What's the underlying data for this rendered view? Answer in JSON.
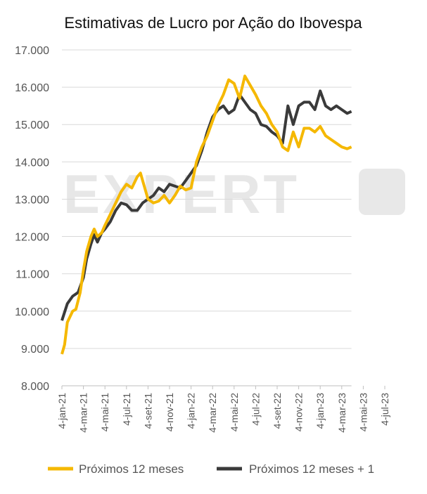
{
  "chart_data": {
    "type": "line",
    "title": "Estimativas de Lucro por Ação do Ibovespa",
    "xlabel": "",
    "ylabel": "",
    "ylim": [
      8000,
      17000
    ],
    "yticks": [
      "8.000",
      "9.000",
      "10.000",
      "11.000",
      "12.000",
      "13.000",
      "14.000",
      "15.000",
      "16.000",
      "17.000"
    ],
    "ytick_values": [
      8000,
      9000,
      10000,
      11000,
      12000,
      13000,
      14000,
      15000,
      16000,
      17000
    ],
    "xticks": [
      "4-jan-21",
      "4-mar-21",
      "4-mai-21",
      "4-jul-21",
      "4-set-21",
      "4-nov-21",
      "4-jan-22",
      "4-mar-22",
      "4-mai-22",
      "4-jul-22",
      "4-set-22",
      "4-nov-22",
      "4-jan-23",
      "4-mar-23",
      "4-mai-23",
      "4-jul-23"
    ],
    "x_unit": "months since 4-jan-21",
    "xlim": [
      0,
      26.9
    ],
    "grid": "horizontal",
    "legend_position": "bottom",
    "watermark": "EXPERT XP",
    "series": [
      {
        "name": "Próximos 12 meses",
        "color": "#F5B800",
        "x": [
          0,
          0.25,
          0.5,
          1,
          1.3,
          1.7,
          2,
          2.3,
          2.7,
          3,
          3.3,
          3.7,
          4,
          4.5,
          5,
          5.5,
          6,
          6.5,
          7,
          7.3,
          7.7,
          8,
          8.5,
          9,
          9.5,
          10,
          10.5,
          11,
          11.5,
          12,
          12.5,
          13,
          13.5,
          14,
          14.5,
          15,
          15.5,
          16,
          16.5,
          17,
          17.5,
          18,
          18.5,
          19,
          19.5,
          20,
          20.5,
          21,
          21.5,
          22,
          22.5,
          23,
          23.5,
          24,
          24.5,
          25,
          25.5,
          26,
          26.5,
          26.9
        ],
        "values": [
          8850,
          9100,
          9700,
          10000,
          10050,
          10500,
          11100,
          11600,
          12000,
          12200,
          12000,
          12100,
          12300,
          12600,
          12900,
          13200,
          13400,
          13300,
          13600,
          13700,
          13300,
          13000,
          12900,
          12950,
          13100,
          12900,
          13100,
          13350,
          13250,
          13300,
          14000,
          14400,
          14700,
          15100,
          15500,
          15800,
          16200,
          16100,
          15700,
          16300,
          16050,
          15800,
          15500,
          15300,
          15000,
          14800,
          14400,
          14300,
          14800,
          14400,
          14900,
          14900,
          14800,
          14950,
          14700,
          14600,
          14500,
          14400,
          14350,
          14400
        ]
      },
      {
        "name": "Próximos 12 meses + 1",
        "color": "#3A3A3A",
        "x": [
          0,
          0.5,
          1,
          1.5,
          2,
          2.3,
          2.7,
          3,
          3.3,
          3.7,
          4,
          4.5,
          5,
          5.5,
          6,
          6.5,
          7,
          7.5,
          8,
          8.5,
          9,
          9.5,
          10,
          10.5,
          11,
          11.5,
          12,
          12.5,
          13,
          13.5,
          14,
          14.5,
          15,
          15.5,
          16,
          16.5,
          17,
          17.5,
          18,
          18.5,
          19,
          19.5,
          20,
          20.5,
          21,
          21.5,
          22,
          22.5,
          23,
          23.5,
          24,
          24.5,
          25,
          25.5,
          26,
          26.5,
          26.9
        ],
        "values": [
          9750,
          10200,
          10400,
          10500,
          10900,
          11400,
          11800,
          12050,
          11850,
          12100,
          12200,
          12400,
          12700,
          12900,
          12850,
          12700,
          12700,
          12900,
          13000,
          13100,
          13300,
          13200,
          13400,
          13350,
          13300,
          13500,
          13700,
          13900,
          14300,
          14800,
          15200,
          15400,
          15500,
          15300,
          15400,
          15800,
          15600,
          15400,
          15300,
          15000,
          14950,
          14800,
          14700,
          14500,
          15500,
          15000,
          15500,
          15600,
          15600,
          15400,
          15900,
          15500,
          15400,
          15500,
          15400,
          15300,
          15350
        ]
      }
    ]
  }
}
